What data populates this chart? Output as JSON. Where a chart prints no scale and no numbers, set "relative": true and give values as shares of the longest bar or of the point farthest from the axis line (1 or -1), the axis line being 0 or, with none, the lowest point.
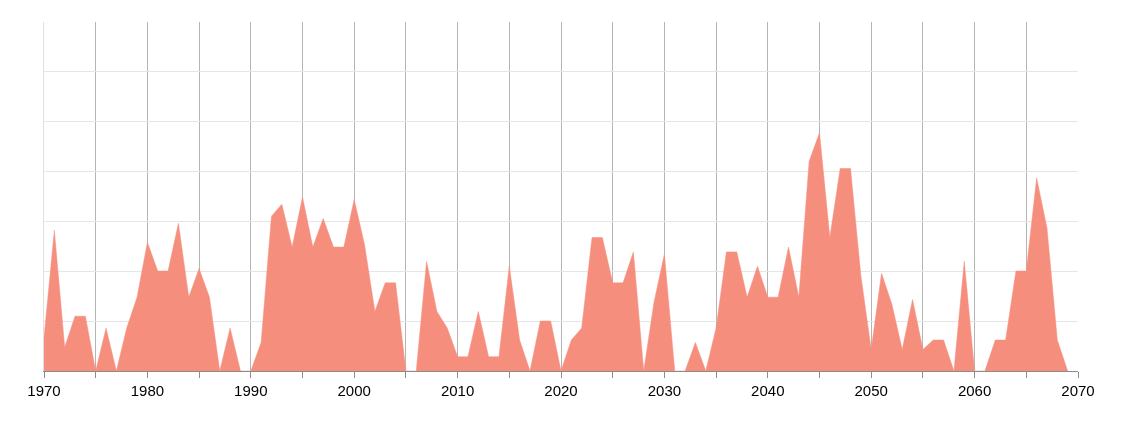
{
  "chart_data": {
    "type": "area",
    "relative": true,
    "color": "#f68e7e",
    "grid": true,
    "x": [
      1970,
      1971,
      1972,
      1973,
      1974,
      1975,
      1976,
      1977,
      1978,
      1979,
      1980,
      1981,
      1982,
      1983,
      1984,
      1985,
      1986,
      1987,
      1988,
      1989,
      1990,
      1991,
      1992,
      1993,
      1994,
      1995,
      1996,
      1997,
      1998,
      1999,
      2000,
      2001,
      2002,
      2003,
      2004,
      2005,
      2006,
      2007,
      2008,
      2009,
      2010,
      2011,
      2012,
      2013,
      2014,
      2015,
      2016,
      2017,
      2018,
      2019,
      2020,
      2021,
      2022,
      2023,
      2024,
      2025,
      2026,
      2027,
      2028,
      2029,
      2030,
      2031,
      2032,
      2033,
      2034,
      2035,
      2036,
      2037,
      2038,
      2039,
      2040,
      2041,
      2042,
      2043,
      2044,
      2045,
      2046,
      2047,
      2048,
      2049,
      2050,
      2051,
      2052,
      2053,
      2054,
      2055,
      2056,
      2057,
      2058,
      2059,
      2060,
      2061,
      2062,
      2063,
      2064,
      2065,
      2066,
      2067,
      2068,
      2069
    ],
    "values": [
      0.14,
      0.59,
      0.1,
      0.23,
      0.23,
      0,
      0.18,
      0,
      0.18,
      0.31,
      0.54,
      0.42,
      0.42,
      0.62,
      0.31,
      0.43,
      0.31,
      0,
      0.18,
      0,
      0,
      0.12,
      0.65,
      0.7,
      0.52,
      0.73,
      0.52,
      0.64,
      0.52,
      0.52,
      0.72,
      0.53,
      0.25,
      0.37,
      0.37,
      0,
      0,
      0.46,
      0.25,
      0.18,
      0.06,
      0.06,
      0.25,
      0.06,
      0.06,
      0.44,
      0.13,
      0,
      0.21,
      0.21,
      0,
      0.13,
      0.18,
      0.56,
      0.56,
      0.37,
      0.37,
      0.5,
      0,
      0.29,
      0.49,
      0,
      0,
      0.12,
      0,
      0.18,
      0.5,
      0.5,
      0.31,
      0.44,
      0.31,
      0.31,
      0.52,
      0.31,
      0.88,
      1,
      0.56,
      0.85,
      0.85,
      0.4,
      0.09,
      0.41,
      0.28,
      0.09,
      0.3,
      0.09,
      0.13,
      0.13,
      0,
      0.46,
      0,
      0,
      0.13,
      0.13,
      0.42,
      0.42,
      0.81,
      0.6,
      0.13,
      0
    ],
    "xlim": [
      1970,
      2070
    ],
    "xticks": [
      1970,
      {
        "value": 1975,
        "label": null
      },
      1980,
      {
        "value": 1985,
        "label": null
      },
      1990,
      {
        "value": 1995,
        "label": null
      },
      2000,
      {
        "value": 2005,
        "label": null
      },
      2010,
      {
        "value": 2015,
        "label": null
      },
      2020,
      {
        "value": 2025,
        "label": null
      },
      2030,
      {
        "value": 2035,
        "label": null
      },
      2040,
      {
        "value": 2045,
        "label": null
      },
      2050,
      {
        "value": 2055,
        "label": null
      },
      2060,
      {
        "value": 2065,
        "label": null
      },
      2070
    ]
  }
}
